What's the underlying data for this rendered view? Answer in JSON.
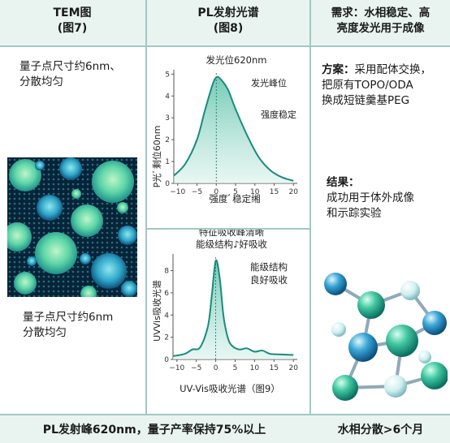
{
  "headers": {
    "col1": [
      "TEM图",
      "(图7)"
    ],
    "col2": [
      "PL发射光谱",
      "(图8)"
    ],
    "col3": [
      "需求：水相稳定、高",
      "亮度发光用于成像"
    ]
  },
  "left": {
    "top_text": [
      "量子点尺寸约6nm、",
      "分散均匀"
    ],
    "bottom_text": [
      "量子点尺寸约6nm",
      "分散均匀"
    ]
  },
  "right": {
    "plan_label": "方案：",
    "plan_lines": [
      "采用配体交换，",
      "把原有TOPO/ODA",
      "换成短链羹基PEG"
    ],
    "result_label": "结果：",
    "result_lines": [
      "成功用于体外成像",
      "和示踪实验"
    ]
  },
  "pl_chart": {
    "title": "发光位620nm",
    "ylabel": "P光ﾞ剩位60nm",
    "xlabel": "强度ﾞ稳定缃",
    "annot_peak": "发光峰位",
    "annot_stable": "强度稳定",
    "xticks": [
      "−10",
      "−5",
      "0",
      "5",
      "10",
      "15",
      "20"
    ],
    "yticks": [
      "0",
      "1",
      "2",
      "3",
      "4",
      "5"
    ]
  },
  "uv_chart": {
    "title_lines": [
      "特征吸收峰清晰",
      "能级结构♪好吸收"
    ],
    "ylabel": "UVVis吸收光谱",
    "xlabel": "UV-Vis吸收光谱（图9）",
    "annot_lines": [
      "能级结构",
      "良好吸收"
    ],
    "xticks": [
      "−10",
      "−5",
      "0",
      "5",
      "10",
      "15",
      "20"
    ],
    "yticks": [
      "0",
      "2",
      "4",
      "6",
      "8"
    ]
  },
  "chart_data": [
    {
      "type": "area",
      "title": "发光位620nm",
      "ylabel": "P光ﾞ剩位60nm",
      "xlabel": "强度ﾞ稳定缃",
      "xlim": [
        -11,
        21
      ],
      "ylim": [
        0,
        5.2
      ],
      "x": [
        -11,
        -8,
        -5,
        -3,
        -1,
        0,
        1,
        3,
        5,
        8,
        11,
        14,
        17,
        20
      ],
      "values": [
        0.35,
        0.9,
        2.0,
        3.3,
        4.5,
        4.85,
        4.8,
        4.3,
        3.4,
        2.2,
        1.2,
        0.6,
        0.28,
        0.12
      ],
      "annotations": [
        "发光峰位",
        "强度稳定"
      ],
      "grid": false
    },
    {
      "type": "area",
      "title": "特征吸收峰清晰 能级结构♪好吸收",
      "ylabel": "UVVis吸收光谱",
      "xlabel": "UV-Vis吸收光谱（图9）",
      "xlim": [
        -11,
        21
      ],
      "ylim": [
        0,
        9.5
      ],
      "x": [
        -11,
        -8,
        -6,
        -4,
        -2,
        -1,
        0,
        1,
        2,
        3,
        4,
        6,
        8,
        10,
        12,
        14,
        17,
        20
      ],
      "values": [
        0.3,
        0.5,
        0.9,
        1.1,
        3.0,
        5.8,
        8.9,
        7.4,
        3.9,
        2.1,
        1.3,
        0.9,
        1.0,
        0.7,
        0.8,
        0.5,
        0.45,
        0.4
      ],
      "annotations": [
        "能级结构",
        "良好吸收"
      ],
      "grid": false
    }
  ],
  "footer": {
    "left": "PL发射峰620nm，量子产率保持75%以上",
    "right": "水相分散>6个月"
  },
  "colors": {
    "header_bg": "#e9f4f1",
    "line": "#1a8b7c",
    "fill": "#8fd4c4",
    "rule": "#9fc9c2"
  }
}
